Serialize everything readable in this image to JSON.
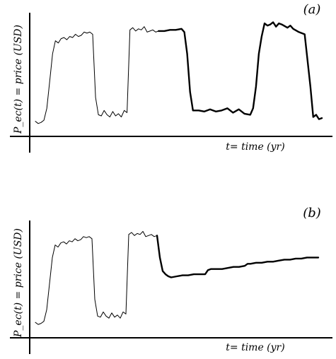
{
  "chart_data": [
    {
      "panel_label": "(a)",
      "type": "line",
      "xlabel": "t= time (yr)",
      "ylabel": "P_ec(t) = price (USD)",
      "grid": false,
      "ylim": [
        0,
        100
      ],
      "x_range": [
        0,
        100
      ],
      "series": [
        {
          "x": [
            0,
            1,
            2,
            3,
            4,
            5,
            6,
            7,
            8,
            9,
            10,
            11,
            12,
            13,
            14,
            15,
            16,
            17,
            18,
            19,
            20,
            21,
            22,
            23,
            24,
            25,
            26,
            27,
            28,
            29,
            30,
            31,
            32,
            33,
            34,
            35,
            36,
            37,
            38,
            39,
            40,
            41,
            42,
            43
          ],
          "y": [
            8,
            6,
            7,
            9,
            20,
            45,
            70,
            82,
            80,
            84,
            85,
            83,
            86,
            85,
            88,
            86,
            87,
            90,
            89,
            90,
            88,
            30,
            14,
            13,
            18,
            14,
            12,
            17,
            13,
            15,
            12,
            18,
            16,
            92,
            94,
            91,
            93,
            92,
            95,
            90,
            91,
            92,
            90,
            91
          ]
        },
        {
          "x": [
            43,
            45,
            47,
            49,
            51,
            52,
            53,
            54,
            55,
            57,
            59,
            61,
            63,
            65,
            67,
            69,
            71,
            73,
            75,
            76,
            77,
            78,
            79,
            80,
            81,
            82,
            83,
            84,
            85,
            86,
            88,
            89,
            90,
            92,
            94,
            96,
            97,
            98,
            99,
            100
          ],
          "y": [
            91,
            91,
            92,
            92,
            93,
            90,
            70,
            35,
            18,
            18,
            17,
            19,
            17,
            18,
            20,
            16,
            19,
            15,
            14,
            20,
            40,
            70,
            86,
            98,
            96,
            97,
            99,
            95,
            98,
            97,
            94,
            96,
            93,
            90,
            88,
            40,
            12,
            14,
            10,
            11
          ]
        }
      ]
    },
    {
      "panel_label": "(b)",
      "type": "line",
      "xlabel": "t= time (yr)",
      "ylabel": "P_ec(t) = price (USD)",
      "grid": false,
      "ylim": [
        0,
        100
      ],
      "x_range": [
        0,
        100
      ],
      "series": [
        {
          "x": [
            0,
            1,
            2,
            3,
            4,
            5,
            6,
            7,
            8,
            9,
            10,
            11,
            12,
            13,
            14,
            15,
            16,
            17,
            18,
            19,
            20,
            21,
            22,
            23,
            24,
            25,
            26,
            27,
            28,
            29,
            30,
            31,
            32,
            33,
            34,
            35,
            36,
            37,
            38,
            39,
            40,
            41,
            42,
            43
          ],
          "y": [
            8,
            6,
            7,
            9,
            20,
            45,
            70,
            82,
            80,
            84,
            85,
            83,
            86,
            85,
            88,
            86,
            87,
            90,
            89,
            90,
            88,
            30,
            14,
            13,
            18,
            14,
            12,
            17,
            13,
            15,
            12,
            18,
            16,
            92,
            94,
            91,
            93,
            92,
            95,
            90,
            91,
            92,
            90,
            91
          ]
        },
        {
          "x": [
            43,
            44,
            45,
            46,
            47,
            48,
            50,
            52,
            54,
            56,
            58,
            60,
            61,
            62,
            64,
            66,
            68,
            70,
            72,
            74,
            75,
            76,
            78,
            80,
            82,
            84,
            86,
            88,
            90,
            92,
            94,
            96,
            98,
            100
          ],
          "y": [
            91,
            70,
            57,
            54,
            52,
            51,
            52,
            53,
            53,
            54,
            54,
            54,
            58,
            59,
            59,
            59,
            60,
            61,
            61,
            62,
            64,
            64,
            65,
            65,
            66,
            66,
            67,
            68,
            68,
            69,
            69,
            70,
            70,
            70
          ]
        }
      ]
    }
  ]
}
